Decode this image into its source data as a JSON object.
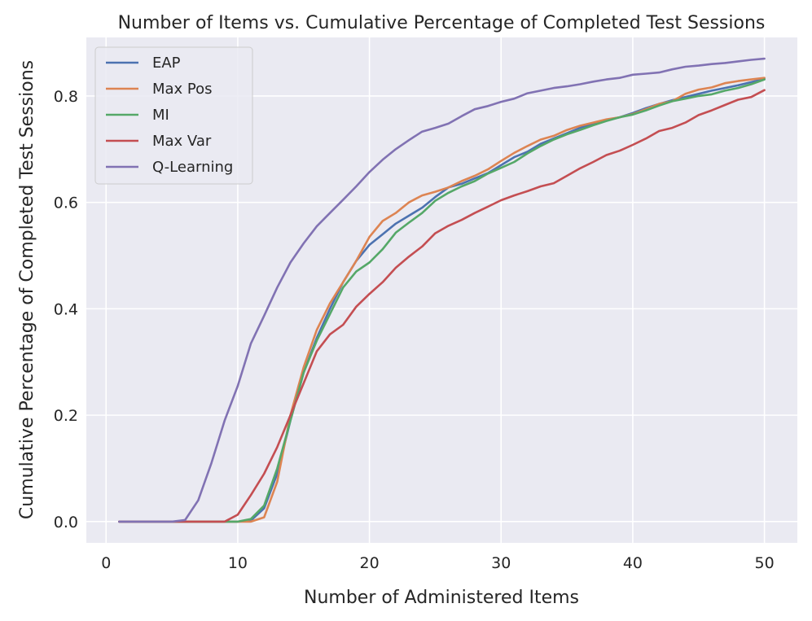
{
  "chart_data": {
    "type": "line",
    "title": "Number of Items vs. Cumulative Percentage of Completed Test Sessions",
    "xlabel": "Number of Administered Items",
    "ylabel": "Cumulative Percentage of Completed Test Sessions",
    "xlim": [
      -1.5,
      52.5
    ],
    "ylim": [
      -0.04,
      0.91
    ],
    "xticks": [
      0,
      10,
      20,
      30,
      40,
      50
    ],
    "yticks": [
      0.0,
      0.2,
      0.4,
      0.6,
      0.8
    ],
    "xtick_labels": [
      "0",
      "10",
      "20",
      "30",
      "40",
      "50"
    ],
    "ytick_labels": [
      "0.0",
      "0.2",
      "0.4",
      "0.6",
      "0.8"
    ],
    "grid": true,
    "legend_position": "top-left",
    "background_color": "#eaeaf2",
    "x": [
      1,
      2,
      3,
      4,
      5,
      6,
      7,
      8,
      9,
      10,
      11,
      12,
      13,
      14,
      15,
      16,
      17,
      18,
      19,
      20,
      21,
      22,
      23,
      24,
      25,
      26,
      27,
      28,
      29,
      30,
      31,
      32,
      33,
      34,
      35,
      36,
      37,
      38,
      39,
      40,
      41,
      42,
      43,
      44,
      45,
      46,
      47,
      48,
      49,
      50
    ],
    "series": [
      {
        "name": "EAP",
        "color": "#4c72b0",
        "values": [
          0,
          0,
          0,
          0,
          0,
          0,
          0,
          0,
          0,
          0,
          0.002,
          0.025,
          0.09,
          0.19,
          0.28,
          0.345,
          0.4,
          0.45,
          0.49,
          0.52,
          0.54,
          0.56,
          0.575,
          0.59,
          0.61,
          0.628,
          0.635,
          0.645,
          0.655,
          0.67,
          0.685,
          0.695,
          0.71,
          0.72,
          0.73,
          0.74,
          0.748,
          0.755,
          0.76,
          0.768,
          0.777,
          0.785,
          0.792,
          0.798,
          0.804,
          0.81,
          0.815,
          0.82,
          0.826,
          0.832
        ]
      },
      {
        "name": "Max Pos",
        "color": "#dd8452",
        "values": [
          0,
          0,
          0,
          0,
          0,
          0,
          0,
          0,
          0,
          0,
          0,
          0.008,
          0.075,
          0.2,
          0.29,
          0.36,
          0.41,
          0.45,
          0.49,
          0.535,
          0.565,
          0.58,
          0.6,
          0.613,
          0.62,
          0.628,
          0.64,
          0.65,
          0.662,
          0.678,
          0.693,
          0.706,
          0.718,
          0.725,
          0.736,
          0.744,
          0.75,
          0.756,
          0.76,
          0.766,
          0.775,
          0.785,
          0.79,
          0.804,
          0.812,
          0.816,
          0.824,
          0.828,
          0.831,
          0.834
        ]
      },
      {
        "name": "MI",
        "color": "#55a868",
        "values": [
          0,
          0,
          0,
          0,
          0,
          0,
          0,
          0,
          0,
          0,
          0.005,
          0.03,
          0.1,
          0.19,
          0.28,
          0.34,
          0.39,
          0.44,
          0.47,
          0.487,
          0.512,
          0.543,
          0.562,
          0.58,
          0.603,
          0.618,
          0.63,
          0.64,
          0.654,
          0.665,
          0.676,
          0.692,
          0.706,
          0.718,
          0.728,
          0.736,
          0.745,
          0.753,
          0.76,
          0.765,
          0.773,
          0.782,
          0.79,
          0.795,
          0.8,
          0.803,
          0.81,
          0.815,
          0.822,
          0.831
        ]
      },
      {
        "name": "Max Var",
        "color": "#c44e52",
        "values": [
          0,
          0,
          0,
          0,
          0,
          0,
          0,
          0,
          0,
          0.013,
          0.05,
          0.09,
          0.14,
          0.2,
          0.26,
          0.32,
          0.352,
          0.37,
          0.404,
          0.428,
          0.45,
          0.477,
          0.498,
          0.517,
          0.542,
          0.556,
          0.567,
          0.58,
          0.592,
          0.604,
          0.613,
          0.621,
          0.63,
          0.636,
          0.65,
          0.664,
          0.676,
          0.689,
          0.697,
          0.708,
          0.72,
          0.734,
          0.74,
          0.75,
          0.764,
          0.773,
          0.783,
          0.793,
          0.798,
          0.811
        ]
      },
      {
        "name": "Q-Learning",
        "color": "#8172b3",
        "values": [
          0,
          0,
          0,
          0,
          0,
          0.003,
          0.04,
          0.11,
          0.19,
          0.255,
          0.335,
          0.387,
          0.44,
          0.487,
          0.523,
          0.555,
          0.58,
          0.605,
          0.63,
          0.657,
          0.68,
          0.7,
          0.717,
          0.733,
          0.74,
          0.748,
          0.762,
          0.775,
          0.781,
          0.789,
          0.795,
          0.805,
          0.81,
          0.815,
          0.818,
          0.822,
          0.827,
          0.831,
          0.834,
          0.84,
          0.842,
          0.844,
          0.85,
          0.855,
          0.857,
          0.86,
          0.862,
          0.865,
          0.868,
          0.87
        ]
      }
    ]
  }
}
